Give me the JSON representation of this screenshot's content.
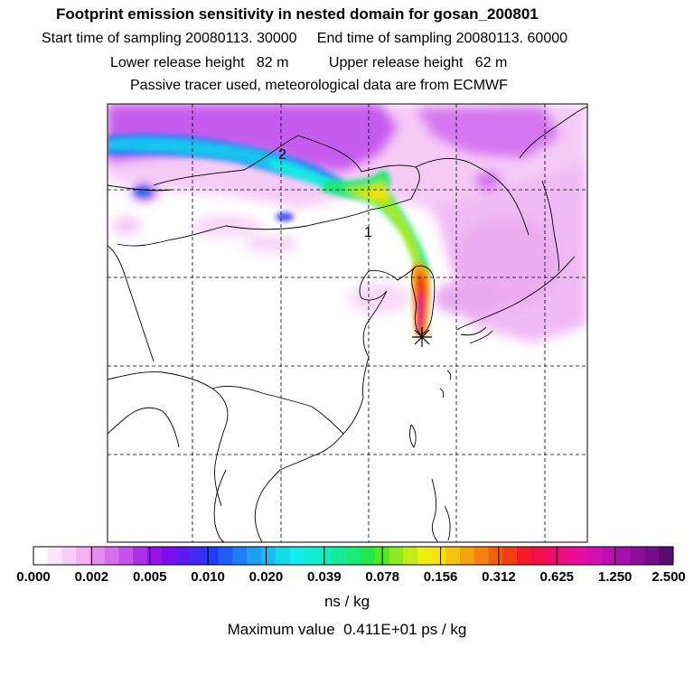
{
  "header": {
    "title": "Footprint emission sensitivity in nested domain for gosan_200801",
    "sampling_line": "Start time of sampling 20080113. 30000     End time of sampling 20080113. 60000",
    "height_line": "Lower release height   82 m          Upper release height   62 m",
    "tracer_line": "Passive tracer used, meteorological data are from ECMWF"
  },
  "map": {
    "release_marker": "asterisk-icon",
    "point_labels": [
      "2",
      "1"
    ]
  },
  "colorbar": {
    "tick_labels": [
      "0.000",
      "0.002",
      "0.005",
      "0.010",
      "0.020",
      "0.039",
      "0.078",
      "0.156",
      "0.312",
      "0.625",
      "1.250",
      "2.500"
    ],
    "colors": [
      "#ffffff",
      "#fde6fc",
      "#f8ccf8",
      "#f2b2f4",
      "#e68ef0",
      "#d870ee",
      "#c552ec",
      "#ae2fea",
      "#9414e8",
      "#7c10ec",
      "#5e18f0",
      "#4128f4",
      "#1f3cf6",
      "#1d5ff6",
      "#1c7ff4",
      "#1c9ef2",
      "#18bcf0",
      "#14d8ee",
      "#10ecec",
      "#10eed6",
      "#12eeba",
      "#16ec98",
      "#1aea76",
      "#24e84a",
      "#50e826",
      "#8ae81e",
      "#c2ec16",
      "#ecee10",
      "#f8e00e",
      "#f6c20e",
      "#f4a20e",
      "#f3820e",
      "#f2600e",
      "#f23e10",
      "#f41c24",
      "#f20e46",
      "#f00c66",
      "#ec0e86",
      "#e40ea0",
      "#d40eb0",
      "#c00eb4",
      "#a80eac",
      "#8e0e9c",
      "#740e88",
      "#5a0a70"
    ],
    "unit": "ns / kg"
  },
  "footer": {
    "max_value": "Maximum value  0.411E+01 ps / kg"
  }
}
